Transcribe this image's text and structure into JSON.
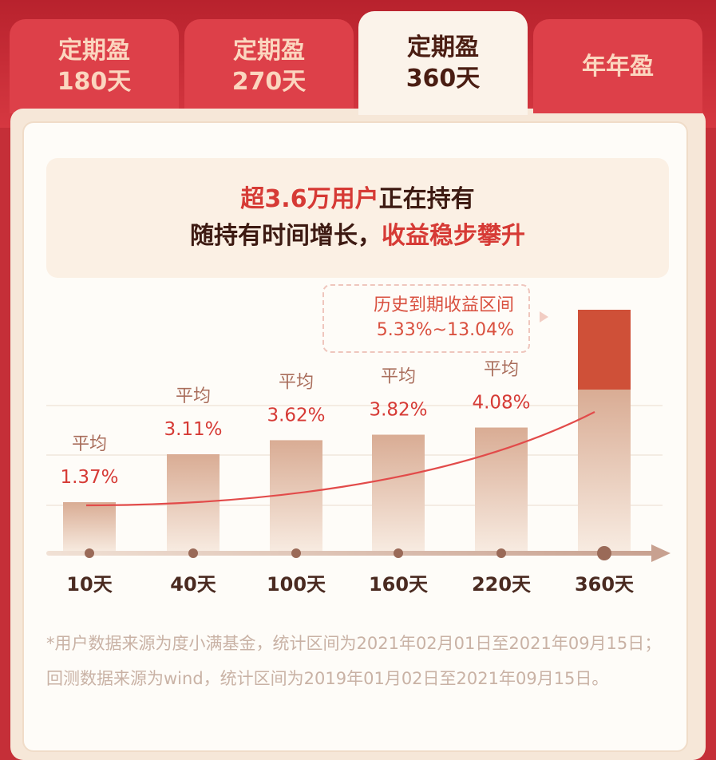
{
  "tabs": [
    {
      "line1": "定期盈",
      "line2": "180天",
      "active": false
    },
    {
      "line1": "定期盈",
      "line2": "270天",
      "active": false
    },
    {
      "line1": "定期盈",
      "line2": "360天",
      "active": true
    },
    {
      "line1": "年年盈",
      "line2": "",
      "active": false
    }
  ],
  "headline": {
    "line1_highlight": "超3.6万用户",
    "line1_rest": "正在持有",
    "line2_start": "随持有时间增长，",
    "line2_highlight": "收益稳步攀升"
  },
  "callout": {
    "label": "历史到期收益区间",
    "range": "5.33%~13.04%"
  },
  "colors": {
    "accent": "#d63a35",
    "tab_inactive": "#dd4049",
    "tab_active": "#fbf3ea",
    "bar": "#d9b09a",
    "bar_highlight": "#cf5038"
  },
  "chart_data": {
    "type": "bar",
    "categories": [
      "10天",
      "40天",
      "100天",
      "160天",
      "220天",
      "360天"
    ],
    "series": [
      {
        "values": [
          1.37,
          3.11,
          3.62,
          3.82,
          4.08,
          null
        ]
      }
    ],
    "range_bar": {
      "category": "360天",
      "low": 5.33,
      "high": 13.04
    },
    "bar_prefix": "平均",
    "bar_labels": [
      "1.37%",
      "3.11%",
      "3.62%",
      "3.82%",
      "4.08%",
      ""
    ],
    "trend_line": true,
    "grid": true
  },
  "footnote": "*用户数据来源为度小满基金，统计区间为2021年02月01日至2021年09月15日；回测数据来源为wind，统计区间为2019年01月02日至2021年09月15日。"
}
